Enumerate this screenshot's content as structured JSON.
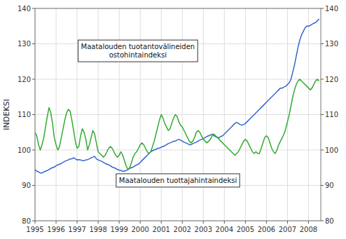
{
  "chart_data": {
    "type": "line",
    "ylabel": "INDEKSI",
    "x": [
      1995,
      1995.0833,
      1995.1667,
      1995.25,
      1995.3333,
      1995.4167,
      1995.5,
      1995.5833,
      1995.6667,
      1995.75,
      1995.8333,
      1995.9167,
      1996,
      1996.0833,
      1996.1667,
      1996.25,
      1996.3333,
      1996.4167,
      1996.5,
      1996.5833,
      1996.6667,
      1996.75,
      1996.8333,
      1996.9167,
      1997,
      1997.0833,
      1997.1667,
      1997.25,
      1997.3333,
      1997.4167,
      1997.5,
      1997.5833,
      1997.6667,
      1997.75,
      1997.8333,
      1997.9167,
      1998,
      1998.0833,
      1998.1667,
      1998.25,
      1998.3333,
      1998.4167,
      1998.5,
      1998.5833,
      1998.6667,
      1998.75,
      1998.8333,
      1998.9167,
      1999,
      1999.0833,
      1999.1667,
      1999.25,
      1999.3333,
      1999.4167,
      1999.5,
      1999.5833,
      1999.6667,
      1999.75,
      1999.8333,
      1999.9167,
      2000,
      2000.0833,
      2000.1667,
      2000.25,
      2000.3333,
      2000.4167,
      2000.5,
      2000.5833,
      2000.6667,
      2000.75,
      2000.8333,
      2000.9167,
      2001,
      2001.0833,
      2001.1667,
      2001.25,
      2001.3333,
      2001.4167,
      2001.5,
      2001.5833,
      2001.6667,
      2001.75,
      2001.8333,
      2001.9167,
      2002,
      2002.0833,
      2002.1667,
      2002.25,
      2002.3333,
      2002.4167,
      2002.5,
      2002.5833,
      2002.6667,
      2002.75,
      2002.8333,
      2002.9167,
      2003,
      2003.0833,
      2003.1667,
      2003.25,
      2003.3333,
      2003.4167,
      2003.5,
      2003.5833,
      2003.6667,
      2003.75,
      2003.8333,
      2003.9167,
      2004,
      2004.0833,
      2004.1667,
      2004.25,
      2004.3333,
      2004.4167,
      2004.5,
      2004.5833,
      2004.6667,
      2004.75,
      2004.8333,
      2004.9167,
      2005,
      2005.0833,
      2005.1667,
      2005.25,
      2005.3333,
      2005.4167,
      2005.5,
      2005.5833,
      2005.6667,
      2005.75,
      2005.8333,
      2005.9167,
      2006,
      2006.0833,
      2006.1667,
      2006.25,
      2006.3333,
      2006.4167,
      2006.5,
      2006.5833,
      2006.6667,
      2006.75,
      2006.8333,
      2006.9167,
      2007,
      2007.0833,
      2007.1667,
      2007.25,
      2007.3333,
      2007.4167,
      2007.5,
      2007.5833,
      2007.6667,
      2007.75,
      2007.8333,
      2007.9167,
      2008,
      2008.0833,
      2008.1667,
      2008.25,
      2008.3333,
      2008.4167,
      2008.5
    ],
    "series": [
      {
        "color": "#3366CC",
        "values": [
          94.5,
          94.0,
          93.8,
          93.5,
          93.5,
          93.8,
          94.0,
          94.2,
          94.5,
          94.8,
          95.0,
          95.2,
          95.5,
          95.8,
          96.0,
          96.2,
          96.5,
          96.8,
          97.0,
          97.2,
          97.5,
          97.5,
          97.8,
          97.5,
          97.2,
          97.3,
          97.2,
          97.0,
          97.0,
          97.2,
          97.3,
          97.5,
          97.8,
          98.0,
          98.2,
          97.5,
          97.2,
          97.0,
          96.8,
          96.5,
          96.2,
          96.0,
          95.8,
          95.5,
          95.2,
          95.0,
          94.8,
          94.5,
          94.3,
          94.2,
          94.0,
          94.0,
          94.2,
          94.5,
          94.8,
          95.0,
          95.2,
          95.5,
          95.8,
          96.0,
          96.5,
          97.0,
          97.5,
          98.0,
          98.5,
          99.0,
          99.5,
          99.8,
          100.0,
          100.2,
          100.5,
          100.5,
          100.8,
          101.0,
          101.2,
          101.5,
          101.8,
          102.0,
          102.2,
          102.5,
          102.5,
          102.8,
          103.0,
          102.8,
          102.5,
          102.2,
          102.0,
          101.8,
          101.5,
          101.5,
          101.8,
          102.0,
          102.2,
          102.5,
          102.8,
          103.0,
          103.2,
          103.5,
          103.8,
          104.0,
          104.2,
          104.5,
          104.0,
          103.8,
          103.5,
          103.5,
          103.8,
          104.0,
          104.5,
          105.0,
          105.5,
          106.0,
          106.5,
          107.0,
          107.5,
          107.8,
          107.5,
          107.2,
          107.0,
          107.2,
          107.5,
          108.0,
          108.5,
          109.0,
          109.5,
          110.0,
          110.5,
          111.0,
          111.5,
          112.0,
          112.5,
          113.0,
          113.5,
          114.0,
          114.5,
          115.0,
          115.5,
          116.0,
          116.5,
          117.0,
          117.5,
          117.5,
          117.8,
          118.0,
          118.5,
          119.0,
          120.0,
          122.0,
          124.0,
          126.5,
          129.0,
          131.0,
          132.5,
          133.5,
          134.5,
          135.0,
          135.0,
          135.2,
          135.5,
          135.8,
          136.0,
          136.5,
          137.0
        ]
      },
      {
        "color": "#33AA33",
        "values": [
          105.0,
          104.0,
          101.5,
          100.0,
          101.5,
          103.5,
          106.5,
          109.5,
          112.0,
          110.5,
          107.5,
          103.5,
          101.5,
          100.0,
          101.0,
          103.5,
          106.0,
          108.5,
          110.5,
          111.5,
          111.0,
          108.5,
          105.5,
          102.5,
          100.5,
          101.0,
          104.0,
          106.0,
          105.0,
          103.0,
          100.0,
          101.5,
          103.5,
          105.5,
          104.5,
          102.0,
          99.5,
          99.0,
          98.5,
          98.0,
          98.5,
          99.5,
          100.5,
          101.0,
          100.5,
          99.5,
          98.5,
          98.0,
          98.5,
          99.5,
          98.5,
          97.0,
          95.5,
          94.5,
          95.0,
          96.5,
          98.0,
          99.0,
          99.5,
          100.5,
          101.5,
          102.0,
          101.5,
          100.5,
          99.5,
          99.0,
          99.5,
          101.0,
          102.5,
          104.5,
          106.5,
          108.5,
          110.0,
          109.0,
          107.5,
          106.5,
          105.5,
          106.0,
          107.5,
          109.0,
          110.0,
          109.5,
          108.0,
          107.0,
          106.5,
          105.5,
          104.5,
          103.5,
          102.5,
          102.0,
          102.5,
          103.5,
          105.0,
          105.5,
          105.0,
          104.0,
          103.0,
          102.5,
          102.0,
          102.5,
          103.0,
          104.0,
          104.5,
          104.0,
          103.5,
          103.0,
          102.5,
          102.0,
          101.5,
          101.0,
          100.5,
          100.0,
          99.5,
          99.0,
          98.5,
          99.0,
          99.5,
          100.5,
          101.5,
          102.5,
          103.0,
          102.5,
          101.5,
          100.5,
          99.5,
          99.0,
          99.5,
          99.0,
          99.0,
          100.5,
          102.0,
          103.5,
          104.0,
          103.5,
          102.0,
          100.5,
          99.5,
          99.0,
          100.0,
          101.5,
          102.5,
          103.5,
          104.5,
          106.0,
          108.0,
          110.0,
          112.5,
          115.0,
          117.0,
          118.5,
          119.5,
          120.0,
          119.5,
          119.0,
          118.5,
          118.0,
          117.5,
          117.0,
          117.5,
          118.5,
          119.5,
          120.0,
          119.5
        ]
      }
    ],
    "xlim": [
      1995.0,
      2008.583
    ],
    "ylim": [
      80,
      140
    ],
    "xticks": [
      1995,
      1996,
      1997,
      1998,
      1999,
      2000,
      2001,
      2002,
      2003,
      2004,
      2005,
      2006,
      2007,
      2008
    ],
    "yticks": [
      80,
      90,
      100,
      110,
      120,
      130,
      140
    ],
    "y2lim": [
      80,
      140
    ],
    "y2ticks": [
      80,
      90,
      100,
      110,
      120,
      130,
      140
    ],
    "grid": true,
    "annotations": [
      "Maatalouden tuotantovälineiden\nostohintaindeksi",
      "Maatalouden tuottajahintaindeksi"
    ]
  }
}
